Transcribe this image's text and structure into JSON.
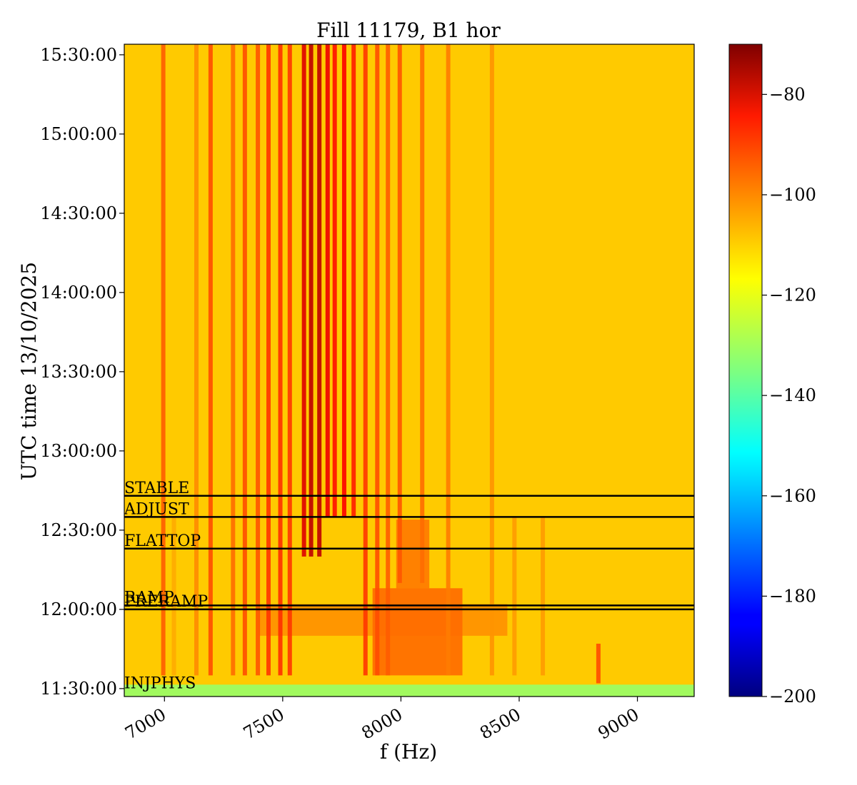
{
  "chart_data": {
    "type": "heatmap",
    "title": "Fill 11179, B1 hor",
    "xlabel": "f (Hz)",
    "ylabel": "UTC time 13/10/2025",
    "xlim": [
      6830,
      9240
    ],
    "ylim": [
      "11:27:00",
      "15:34:00"
    ],
    "x_ticks": [
      7000,
      7500,
      8000,
      8500,
      9000
    ],
    "x_tick_labels": [
      "7000",
      "7500",
      "8000",
      "8500",
      "9000"
    ],
    "y_ticks": [
      "11:30:00",
      "12:00:00",
      "12:30:00",
      "13:00:00",
      "13:30:00",
      "14:00:00",
      "14:30:00",
      "15:00:00",
      "15:30:00"
    ],
    "colormap": "jet",
    "colorbar": {
      "range": [
        -200,
        -70
      ],
      "ticks": [
        -80,
        -100,
        -120,
        -140,
        -160,
        -180,
        -200
      ],
      "tick_labels": [
        "−80",
        "−100",
        "−120",
        "−140",
        "−160",
        "−180",
        "−200"
      ]
    },
    "background_level_db": -112,
    "mode_markers": [
      {
        "label": "STABLE",
        "time": "12:43:00"
      },
      {
        "label": "ADJUST",
        "time": "12:35:00"
      },
      {
        "label": "FLATTOP",
        "time": "12:23:00"
      },
      {
        "label": "RAMP",
        "time": "12:01:30"
      },
      {
        "label": "PRERAMP",
        "time": "12:00:00"
      },
      {
        "label": "INJPHYS",
        "time": "11:29:00"
      }
    ],
    "spectral_lines": [
      {
        "f": 6995,
        "db": -98,
        "start": "11:35:00",
        "end": "15:34:00"
      },
      {
        "f": 7040,
        "db": -108,
        "start": "11:35:00",
        "end": "12:35:00"
      },
      {
        "f": 7135,
        "db": -104,
        "start": "11:35:00",
        "end": "15:34:00"
      },
      {
        "f": 7195,
        "db": -96,
        "start": "11:35:00",
        "end": "15:34:00"
      },
      {
        "f": 7290,
        "db": -100,
        "start": "11:35:00",
        "end": "15:34:00"
      },
      {
        "f": 7340,
        "db": -96,
        "start": "11:35:00",
        "end": "15:34:00"
      },
      {
        "f": 7395,
        "db": -97,
        "start": "11:35:00",
        "end": "15:34:00"
      },
      {
        "f": 7440,
        "db": -93,
        "start": "11:35:00",
        "end": "15:34:00"
      },
      {
        "f": 7490,
        "db": -92,
        "start": "11:35:00",
        "end": "15:34:00"
      },
      {
        "f": 7530,
        "db": -93,
        "start": "11:35:00",
        "end": "15:34:00"
      },
      {
        "f": 7590,
        "db": -82,
        "start": "12:20:00",
        "end": "15:34:00"
      },
      {
        "f": 7620,
        "db": -78,
        "start": "12:20:00",
        "end": "15:34:00"
      },
      {
        "f": 7655,
        "db": -78,
        "start": "12:20:00",
        "end": "15:34:00"
      },
      {
        "f": 7690,
        "db": -84,
        "start": "12:35:00",
        "end": "15:34:00"
      },
      {
        "f": 7720,
        "db": -88,
        "start": "12:35:00",
        "end": "15:34:00"
      },
      {
        "f": 7760,
        "db": -86,
        "start": "12:35:00",
        "end": "15:34:00"
      },
      {
        "f": 7800,
        "db": -90,
        "start": "12:35:00",
        "end": "15:34:00"
      },
      {
        "f": 7850,
        "db": -93,
        "start": "11:35:00",
        "end": "15:34:00"
      },
      {
        "f": 7900,
        "db": -96,
        "start": "11:35:00",
        "end": "15:34:00"
      },
      {
        "f": 7945,
        "db": -98,
        "start": "11:35:00",
        "end": "15:34:00"
      },
      {
        "f": 7995,
        "db": -97,
        "start": "12:10:00",
        "end": "15:34:00"
      },
      {
        "f": 8090,
        "db": -100,
        "start": "12:10:00",
        "end": "15:34:00"
      },
      {
        "f": 8200,
        "db": -102,
        "start": "11:35:00",
        "end": "15:34:00"
      },
      {
        "f": 8385,
        "db": -105,
        "start": "11:35:00",
        "end": "15:34:00"
      },
      {
        "f": 8480,
        "db": -106,
        "start": "11:35:00",
        "end": "12:35:00"
      },
      {
        "f": 8600,
        "db": -106,
        "start": "11:35:00",
        "end": "12:35:00"
      },
      {
        "f": 8835,
        "db": -96,
        "start": "11:32:00",
        "end": "11:47:00"
      }
    ],
    "hot_regions": [
      {
        "f": [
          7880,
          8260
        ],
        "t": [
          "11:35:00",
          "12:08:00"
        ],
        "db": -92
      },
      {
        "f": [
          7980,
          8120
        ],
        "t": [
          "12:08:00",
          "12:34:00"
        ],
        "db": -95
      },
      {
        "f": [
          7400,
          8450
        ],
        "t": [
          "11:50:00",
          "12:02:00"
        ],
        "db": -100
      }
    ],
    "low_band": {
      "t": [
        "11:27:00",
        "11:31:30"
      ],
      "db": -132
    }
  }
}
